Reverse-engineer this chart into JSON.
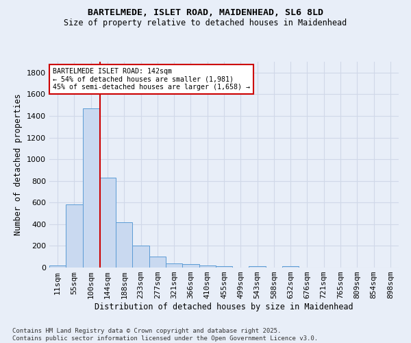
{
  "title_line1": "BARTELMEDE, ISLET ROAD, MAIDENHEAD, SL6 8LD",
  "title_line2": "Size of property relative to detached houses in Maidenhead",
  "xlabel": "Distribution of detached houses by size in Maidenhead",
  "ylabel": "Number of detached properties",
  "footnote": "Contains HM Land Registry data © Crown copyright and database right 2025.\nContains public sector information licensed under the Open Government Licence v3.0.",
  "bar_color": "#c9d9f0",
  "bar_edge_color": "#5b9bd5",
  "grid_color": "#d0d8e8",
  "categories": [
    "11sqm",
    "55sqm",
    "100sqm",
    "144sqm",
    "188sqm",
    "233sqm",
    "277sqm",
    "321sqm",
    "366sqm",
    "410sqm",
    "455sqm",
    "499sqm",
    "543sqm",
    "588sqm",
    "632sqm",
    "676sqm",
    "721sqm",
    "765sqm",
    "809sqm",
    "854sqm",
    "898sqm"
  ],
  "values": [
    22,
    585,
    1470,
    830,
    415,
    200,
    100,
    38,
    30,
    20,
    10,
    0,
    15,
    0,
    10,
    0,
    0,
    0,
    0,
    0,
    0
  ],
  "ylim": [
    0,
    1900
  ],
  "yticks": [
    0,
    200,
    400,
    600,
    800,
    1000,
    1200,
    1400,
    1600,
    1800
  ],
  "property_line_x": 2.55,
  "annotation_text": "BARTELMEDE ISLET ROAD: 142sqm\n← 54% of detached houses are smaller (1,981)\n45% of semi-detached houses are larger (1,658) →",
  "annotation_box_color": "#ffffff",
  "annotation_edge_color": "#cc0000",
  "vline_color": "#cc0000",
  "background_color": "#e8eef8"
}
